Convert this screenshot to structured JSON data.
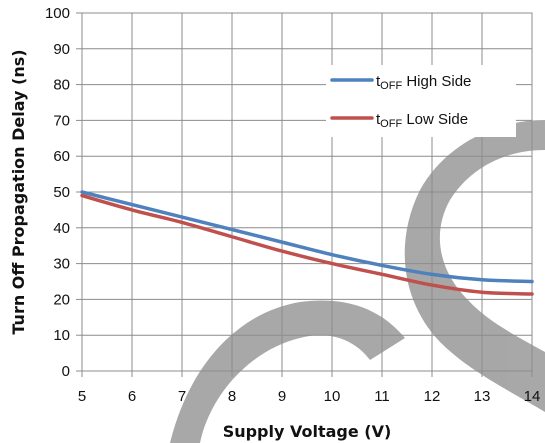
{
  "chart_data": {
    "type": "line",
    "xlabel": "Supply Voltage (V)",
    "ylabel": "Turn Off Propagation Delay (ns)",
    "xlim": [
      5,
      14
    ],
    "ylim": [
      0,
      100
    ],
    "x_ticks": [
      "5",
      "6",
      "7",
      "8",
      "9",
      "10",
      "11",
      "12",
      "13",
      "14"
    ],
    "y_ticks": [
      "0",
      "10",
      "20",
      "30",
      "40",
      "50",
      "60",
      "70",
      "80",
      "90",
      "100"
    ],
    "grid": true,
    "legend_position": "top-right",
    "x": [
      5,
      6,
      7,
      8,
      9,
      10,
      11,
      12,
      13,
      14
    ],
    "series": [
      {
        "legend_prefix": "t",
        "legend_sub": "OFF",
        "legend_suffix": " High Side",
        "color": "#4f81bd",
        "values": [
          50,
          46.5,
          43,
          39.5,
          36,
          32.5,
          29.5,
          27,
          25.5,
          25
        ]
      },
      {
        "legend_prefix": "t",
        "legend_sub": "OFF",
        "legend_suffix": " Low Side",
        "color": "#c0504d",
        "values": [
          49,
          45,
          41.5,
          37.5,
          33.5,
          30,
          27,
          24,
          22,
          21.5
        ]
      }
    ]
  }
}
